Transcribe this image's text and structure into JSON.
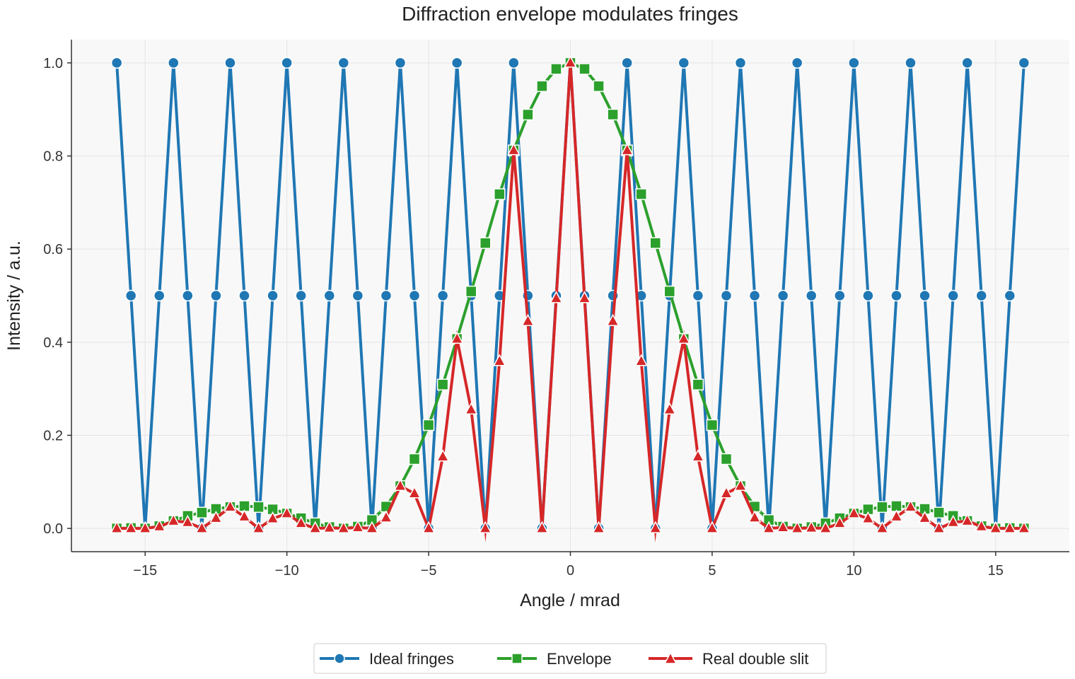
{
  "chart_data": {
    "type": "line",
    "title": "Diffraction envelope modulates fringes",
    "xlabel": "Angle / mrad",
    "ylabel": "Intensity / a.u.",
    "xlim": [
      -17.6,
      17.6
    ],
    "ylim": [
      -0.05,
      1.05
    ],
    "xticks": [
      -15,
      -10,
      -5,
      0,
      5,
      10,
      15
    ],
    "xtick_labels": [
      "−15",
      "−10",
      "−5",
      "0",
      "5",
      "10",
      "15"
    ],
    "yticks": [
      0.0,
      0.2,
      0.4,
      0.6,
      0.8,
      1.0
    ],
    "ytick_labels": [
      "0.0",
      "0.2",
      "0.4",
      "0.6",
      "0.8",
      "1.0"
    ],
    "grid": true,
    "legend_position": "bottom-center",
    "x": [
      -16,
      -15.5,
      -15,
      -14.5,
      -14,
      -13.5,
      -13,
      -12.5,
      -12,
      -11.5,
      -11,
      -10.5,
      -10,
      -9.5,
      -9,
      -8.5,
      -8,
      -7.5,
      -7,
      -6.5,
      -6,
      -5.5,
      -5,
      -4.5,
      -4,
      -3.5,
      -3,
      -2.5,
      -2,
      -1.5,
      -1,
      -0.5,
      0,
      0.5,
      1,
      1.5,
      2,
      2.5,
      3,
      3.5,
      4,
      4.5,
      5,
      5.5,
      6,
      6.5,
      7,
      7.5,
      8,
      8.5,
      9,
      9.5,
      10,
      10.5,
      11,
      11.5,
      12,
      12.5,
      13,
      13.5,
      14,
      14.5,
      15,
      15.5,
      16
    ],
    "series": [
      {
        "name": "Ideal fringes",
        "color": "#1f77b4",
        "marker": "circle",
        "values": [
          1,
          0.5,
          0,
          0.5,
          1,
          0.5,
          0,
          0.5,
          1,
          0.5,
          0,
          0.5,
          1,
          0.5,
          0,
          0.5,
          1,
          0.5,
          0,
          0.5,
          1,
          0.5,
          0,
          0.5,
          1,
          0.5,
          0,
          0.5,
          1,
          0.5,
          0,
          0.5,
          1,
          0.5,
          0,
          0.5,
          1,
          0.5,
          0,
          0.5,
          1,
          0.5,
          0,
          0.5,
          1,
          0.5,
          0,
          0.5,
          1,
          0.5,
          0,
          0.5,
          1,
          0.5,
          0,
          0.5,
          1,
          0.5,
          0,
          0.5,
          1,
          0.5,
          0,
          0.5,
          1
        ]
      },
      {
        "name": "Envelope",
        "color": "#2ca02c",
        "marker": "square",
        "values": [
          0.0,
          0.001,
          0.0,
          0.005,
          0.016,
          0.027,
          0.034,
          0.042,
          0.046,
          0.048,
          0.046,
          0.041,
          0.032,
          0.022,
          0.011,
          0.003,
          0.0,
          0.004,
          0.018,
          0.047,
          0.091,
          0.149,
          0.222,
          0.309,
          0.407,
          0.509,
          0.613,
          0.718,
          0.812,
          0.889,
          0.95,
          0.987,
          1.0,
          0.987,
          0.95,
          0.889,
          0.812,
          0.718,
          0.613,
          0.509,
          0.407,
          0.309,
          0.222,
          0.149,
          0.091,
          0.047,
          0.018,
          0.004,
          0.0,
          0.003,
          0.011,
          0.022,
          0.032,
          0.041,
          0.046,
          0.048,
          0.046,
          0.042,
          0.034,
          0.027,
          0.016,
          0.005,
          0.0,
          0.001,
          0.0
        ]
      },
      {
        "name": "Real double slit",
        "color": "#d62728",
        "marker": "triangle",
        "values": [
          0.0,
          0.0,
          0.0,
          0.004,
          0.016,
          0.013,
          0.0,
          0.022,
          0.046,
          0.025,
          0.0,
          0.021,
          0.032,
          0.011,
          0.0,
          0.001,
          0.0,
          0.002,
          0.0,
          0.023,
          0.091,
          0.075,
          0.0,
          0.154,
          0.407,
          0.255,
          0.0,
          0.359,
          0.812,
          0.445,
          0.0,
          0.494,
          1.0,
          0.494,
          0.0,
          0.445,
          0.812,
          0.359,
          0.0,
          0.255,
          0.407,
          0.154,
          0.0,
          0.075,
          0.091,
          0.023,
          0.0,
          0.002,
          0.0,
          0.001,
          0.0,
          0.011,
          0.032,
          0.021,
          0.0,
          0.025,
          0.046,
          0.022,
          0.0,
          0.013,
          0.016,
          0.004,
          0.0,
          0.0,
          0.0
        ]
      }
    ]
  }
}
